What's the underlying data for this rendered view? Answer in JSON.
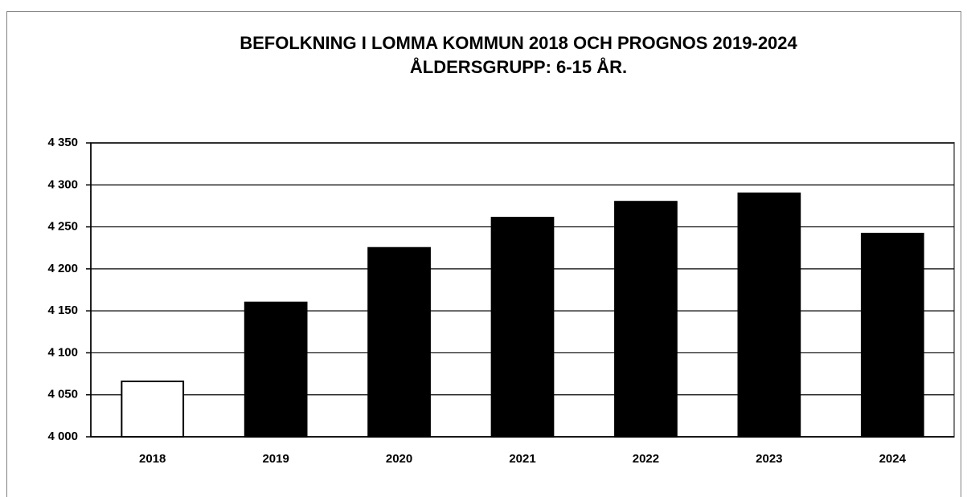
{
  "chart_data": {
    "type": "bar",
    "title": "BEFOLKNING I LOMMA KOMMUN 2018 OCH PROGNOS 2019-2024",
    "subtitle": "ÅLDERSGRUPP: 6-15 ÅR.",
    "categories": [
      "2018",
      "2019",
      "2020",
      "2021",
      "2022",
      "2023",
      "2024"
    ],
    "values": [
      4066,
      4160,
      4225,
      4261,
      4280,
      4290,
      4242
    ],
    "colors": [
      "#ffffff",
      "#000000",
      "#000000",
      "#000000",
      "#000000",
      "#000000",
      "#000000"
    ],
    "ylim": [
      4000,
      4350
    ],
    "yticks": [
      {
        "value": 4000,
        "label": "4 000"
      },
      {
        "value": 4050,
        "label": "4 050"
      },
      {
        "value": 4100,
        "label": "4 100"
      },
      {
        "value": 4150,
        "label": "4 150"
      },
      {
        "value": 4200,
        "label": "4 200"
      },
      {
        "value": 4250,
        "label": "4 250"
      },
      {
        "value": 4300,
        "label": "4 300"
      },
      {
        "value": 4350,
        "label": "4 350"
      }
    ],
    "grid": true
  }
}
